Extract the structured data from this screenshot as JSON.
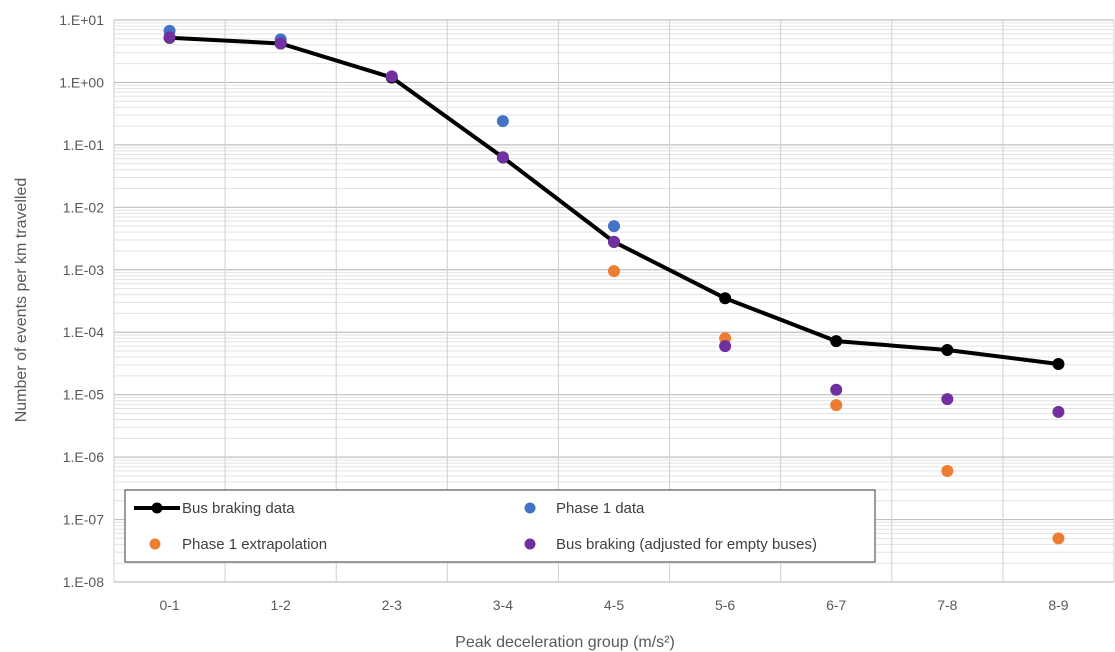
{
  "chart_data": {
    "type": "line",
    "title": "",
    "xlabel": "Peak deceleration group (m/s²)",
    "ylabel": "Number of events per km travelled",
    "y_scale": "log",
    "ylim": [
      1e-08,
      10
    ],
    "y_tick_labels": [
      "1.E-08",
      "1.E-07",
      "1.E-06",
      "1.E-05",
      "1.E-04",
      "1.E-03",
      "1.E-02",
      "1.E-01",
      "1.E+00",
      "1.E+01"
    ],
    "categories": [
      "0-1",
      "1-2",
      "2-3",
      "3-4",
      "4-5",
      "5-6",
      "6-7",
      "7-8",
      "8-9"
    ],
    "grid": true,
    "legend_position": "bottom-left, inside plot",
    "series": [
      {
        "name": "Bus braking data",
        "type": "line",
        "color": "#000000",
        "values": [
          5.2,
          4.2,
          1.2,
          0.063,
          0.0028,
          0.00035,
          7.2e-05,
          5.2e-05,
          3.1e-05
        ]
      },
      {
        "name": "Phase 1 data",
        "type": "scatter",
        "color": "#4472c4",
        "values": [
          6.7,
          4.9,
          null,
          0.24,
          0.005,
          null,
          null,
          null,
          null
        ]
      },
      {
        "name": "Phase 1 extrapolation",
        "type": "scatter",
        "color": "#ed7d31",
        "values": [
          null,
          null,
          null,
          null,
          0.00095,
          8e-05,
          6.8e-06,
          6e-07,
          5e-08
        ]
      },
      {
        "name": "Bus braking (adjusted for empty buses)",
        "type": "scatter",
        "color": "#7030a0",
        "values": [
          5.3,
          4.2,
          1.25,
          0.063,
          0.0028,
          6e-05,
          1.2e-05,
          8.5e-06,
          5.3e-06
        ]
      }
    ]
  }
}
